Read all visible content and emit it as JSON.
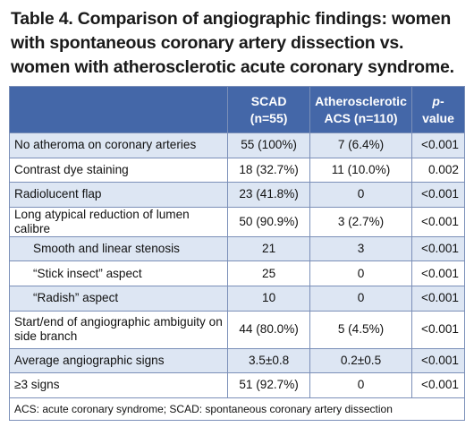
{
  "title": "Table 4. Comparison of angiographic findings: women with spontaneous coronary artery dissection vs. women with atherosclerotic acute coronary syndrome.",
  "header": {
    "col_label": "",
    "scad_line1": "SCAD",
    "scad_line2": "(n=55)",
    "acs_line1": "Atherosclerotic",
    "acs_line2": "ACS (n=110)",
    "pvalue_italic": "p",
    "pvalue_rest": "-value"
  },
  "rows": [
    {
      "label": "No atheroma on coronary arteries",
      "scad": "55 (100%)",
      "acs": "7 (6.4%)",
      "p": "<0.001"
    },
    {
      "label": "Contrast dye staining",
      "scad": "18 (32.7%)",
      "acs": "11 (10.0%)",
      "p": "0.002"
    },
    {
      "label": "Radiolucent flap",
      "scad": "23 (41.8%)",
      "acs": "0",
      "p": "<0.001"
    },
    {
      "label": "Long atypical reduction of lumen calibre",
      "scad": "50 (90.9%)",
      "acs": "3 (2.7%)",
      "p": "<0.001"
    },
    {
      "label": "Smooth and linear stenosis",
      "scad": "21",
      "acs": "3",
      "p": "<0.001"
    },
    {
      "label": "“Stick insect” aspect",
      "scad": "25",
      "acs": "0",
      "p": "<0.001"
    },
    {
      "label": "“Radish” aspect",
      "scad": "10",
      "acs": "0",
      "p": "<0.001"
    },
    {
      "label": "Start/end of angiographic ambiguity on side branch",
      "scad": "44 (80.0%)",
      "acs": "5 (4.5%)",
      "p": "<0.001"
    },
    {
      "label": "Average angiographic signs",
      "scad": "3.5±0.8",
      "acs": "0.2±0.5",
      "p": "<0.001"
    },
    {
      "label": "≥3 signs",
      "scad": "51 (92.7%)",
      "acs": "0",
      "p": "<0.001"
    }
  ],
  "footnote": "ACS: acute coronary syndrome; SCAD: spontaneous coronary artery dissection",
  "colors": {
    "header_bg": "#4467a8",
    "row_shade": "#dde6f3",
    "border": "#7b8fb8"
  }
}
